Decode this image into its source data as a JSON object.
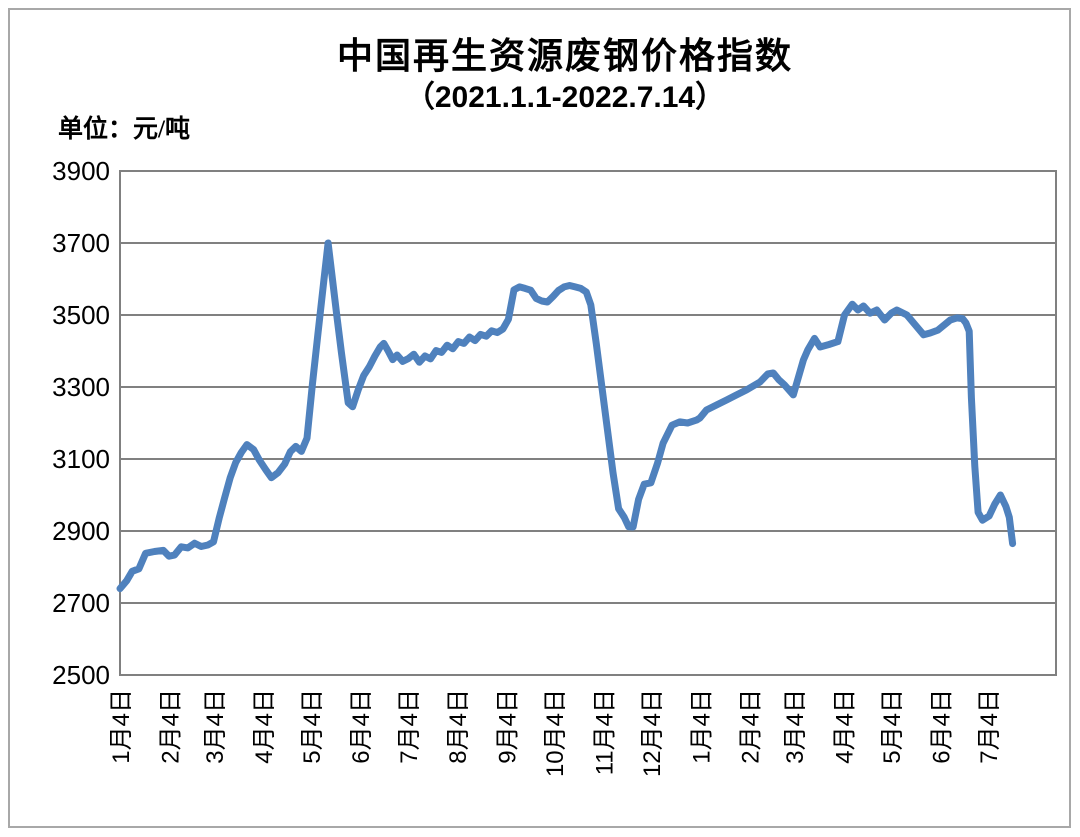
{
  "chart_data": {
    "type": "line",
    "title": "中国再生资源废钢价格指数",
    "subtitle": "（2021.1.1-2022.7.14）",
    "unit_label": "单位：元/吨",
    "value_unit": "元/吨",
    "ylim": [
      2500,
      3900
    ],
    "ytick_step": 200,
    "ytick_labels": [
      "3900",
      "3700",
      "3500",
      "3300",
      "3100",
      "2900",
      "2700",
      "2500"
    ],
    "grid": true,
    "legend": "none",
    "x_unit": "weeks since 2021-01-04",
    "x_domain": [
      0,
      84.1
    ],
    "x_ticks": [
      {
        "pos": 0,
        "label": "1月4日"
      },
      {
        "pos": 4.43,
        "label": "2月4日"
      },
      {
        "pos": 8.43,
        "label": "3月4日"
      },
      {
        "pos": 12.86,
        "label": "4月4日"
      },
      {
        "pos": 17.14,
        "label": "5月4日"
      },
      {
        "pos": 21.57,
        "label": "6月4日"
      },
      {
        "pos": 25.86,
        "label": "7月4日"
      },
      {
        "pos": 30.29,
        "label": "8月4日"
      },
      {
        "pos": 34.71,
        "label": "9月4日"
      },
      {
        "pos": 39.0,
        "label": "10月4日"
      },
      {
        "pos": 43.43,
        "label": "11月4日"
      },
      {
        "pos": 47.71,
        "label": "12月4日"
      },
      {
        "pos": 52.14,
        "label": "1月4日"
      },
      {
        "pos": 56.57,
        "label": "2月4日"
      },
      {
        "pos": 60.57,
        "label": "3月4日"
      },
      {
        "pos": 65.0,
        "label": "4月4日"
      },
      {
        "pos": 69.29,
        "label": "5月4日"
      },
      {
        "pos": 73.71,
        "label": "6月4日"
      },
      {
        "pos": 78.0,
        "label": "7月4日"
      }
    ],
    "colors": {
      "line": "#4f81bd",
      "grid": "#808080",
      "frame": "#808080",
      "text": "#000000",
      "page_border": "#a8a8a8"
    },
    "line_width": 7,
    "series": [
      {
        "points": [
          [
            0,
            2740
          ],
          [
            0.6,
            2762
          ],
          [
            1.1,
            2788
          ],
          [
            1.7,
            2795
          ],
          [
            2.3,
            2838
          ],
          [
            3.1,
            2843
          ],
          [
            3.9,
            2846
          ],
          [
            4.4,
            2830
          ],
          [
            4.9,
            2833
          ],
          [
            5.5,
            2856
          ],
          [
            6.1,
            2853
          ],
          [
            6.7,
            2866
          ],
          [
            7.3,
            2857
          ],
          [
            7.9,
            2861
          ],
          [
            8.4,
            2870
          ],
          [
            8.9,
            2935
          ],
          [
            9.4,
            2992
          ],
          [
            9.9,
            3048
          ],
          [
            10.4,
            3090
          ],
          [
            10.9,
            3118
          ],
          [
            11.4,
            3140
          ],
          [
            12,
            3126
          ],
          [
            12.5,
            3098
          ],
          [
            13.1,
            3070
          ],
          [
            13.6,
            3048
          ],
          [
            14.2,
            3062
          ],
          [
            14.8,
            3086
          ],
          [
            15.3,
            3120
          ],
          [
            15.8,
            3135
          ],
          [
            16.3,
            3121
          ],
          [
            16.8,
            3158
          ],
          [
            17.3,
            3310
          ],
          [
            17.8,
            3452
          ],
          [
            18.3,
            3592
          ],
          [
            18.7,
            3700
          ],
          [
            19.1,
            3596
          ],
          [
            19.5,
            3494
          ],
          [
            19.9,
            3394
          ],
          [
            20.5,
            3256
          ],
          [
            20.9,
            3245
          ],
          [
            21.4,
            3292
          ],
          [
            21.9,
            3332
          ],
          [
            22.4,
            3356
          ],
          [
            22.9,
            3386
          ],
          [
            23.4,
            3412
          ],
          [
            23.7,
            3421
          ],
          [
            24.1,
            3400
          ],
          [
            24.5,
            3376
          ],
          [
            24.9,
            3389
          ],
          [
            25.4,
            3371
          ],
          [
            25.9,
            3379
          ],
          [
            26.4,
            3391
          ],
          [
            26.9,
            3369
          ],
          [
            27.4,
            3386
          ],
          [
            27.9,
            3378
          ],
          [
            28.4,
            3401
          ],
          [
            28.9,
            3396
          ],
          [
            29.4,
            3416
          ],
          [
            29.9,
            3406
          ],
          [
            30.4,
            3426
          ],
          [
            30.9,
            3421
          ],
          [
            31.4,
            3439
          ],
          [
            31.9,
            3429
          ],
          [
            32.4,
            3446
          ],
          [
            32.9,
            3441
          ],
          [
            33.4,
            3456
          ],
          [
            33.9,
            3451
          ],
          [
            34.4,
            3461
          ],
          [
            34.9,
            3488
          ],
          [
            35.4,
            3570
          ],
          [
            35.9,
            3578
          ],
          [
            36.4,
            3574
          ],
          [
            36.9,
            3569
          ],
          [
            37.4,
            3546
          ],
          [
            37.9,
            3539
          ],
          [
            38.4,
            3536
          ],
          [
            38.9,
            3551
          ],
          [
            39.4,
            3568
          ],
          [
            39.9,
            3578
          ],
          [
            40.4,
            3582
          ],
          [
            40.9,
            3578
          ],
          [
            41.4,
            3574
          ],
          [
            41.9,
            3564
          ],
          [
            42.3,
            3528
          ],
          [
            42.8,
            3420
          ],
          [
            43.3,
            3300
          ],
          [
            43.8,
            3180
          ],
          [
            44.3,
            3062
          ],
          [
            44.8,
            2962
          ],
          [
            45.3,
            2938
          ],
          [
            45.7,
            2912
          ],
          [
            46.1,
            2911
          ],
          [
            46.6,
            2988
          ],
          [
            47.1,
            3030
          ],
          [
            47.7,
            3034
          ],
          [
            48.3,
            3089
          ],
          [
            48.8,
            3144
          ],
          [
            49.6,
            3194
          ],
          [
            50.3,
            3203
          ],
          [
            51,
            3200
          ],
          [
            51.8,
            3208
          ],
          [
            52.1,
            3214
          ],
          [
            52.7,
            3236
          ],
          [
            53.6,
            3250
          ],
          [
            54.5,
            3264
          ],
          [
            55.4,
            3278
          ],
          [
            56.3,
            3292
          ],
          [
            57.5,
            3314
          ],
          [
            58.2,
            3336
          ],
          [
            58.7,
            3339
          ],
          [
            59.2,
            3320
          ],
          [
            59.7,
            3306
          ],
          [
            60.5,
            3278
          ],
          [
            61.4,
            3375
          ],
          [
            61.8,
            3403
          ],
          [
            62.4,
            3435
          ],
          [
            62.9,
            3411
          ],
          [
            63.7,
            3418
          ],
          [
            64.5,
            3426
          ],
          [
            65.1,
            3500
          ],
          [
            65.8,
            3530
          ],
          [
            66.3,
            3514
          ],
          [
            66.8,
            3525
          ],
          [
            67.4,
            3505
          ],
          [
            68,
            3514
          ],
          [
            68.7,
            3486
          ],
          [
            69.3,
            3505
          ],
          [
            69.8,
            3514
          ],
          [
            70.7,
            3500
          ],
          [
            71.6,
            3467
          ],
          [
            72.2,
            3445
          ],
          [
            72.8,
            3450
          ],
          [
            73.5,
            3458
          ],
          [
            74.6,
            3486
          ],
          [
            75.2,
            3492
          ],
          [
            75.7,
            3490
          ],
          [
            76,
            3478
          ],
          [
            76.3,
            3455
          ],
          [
            76.5,
            3270
          ],
          [
            76.8,
            3080
          ],
          [
            77.1,
            2952
          ],
          [
            77.5,
            2930
          ],
          [
            78.1,
            2942
          ],
          [
            78.6,
            2975
          ],
          [
            79.1,
            3000
          ],
          [
            79.6,
            2968
          ],
          [
            79.9,
            2938
          ],
          [
            80.2,
            2865
          ]
        ]
      }
    ]
  }
}
